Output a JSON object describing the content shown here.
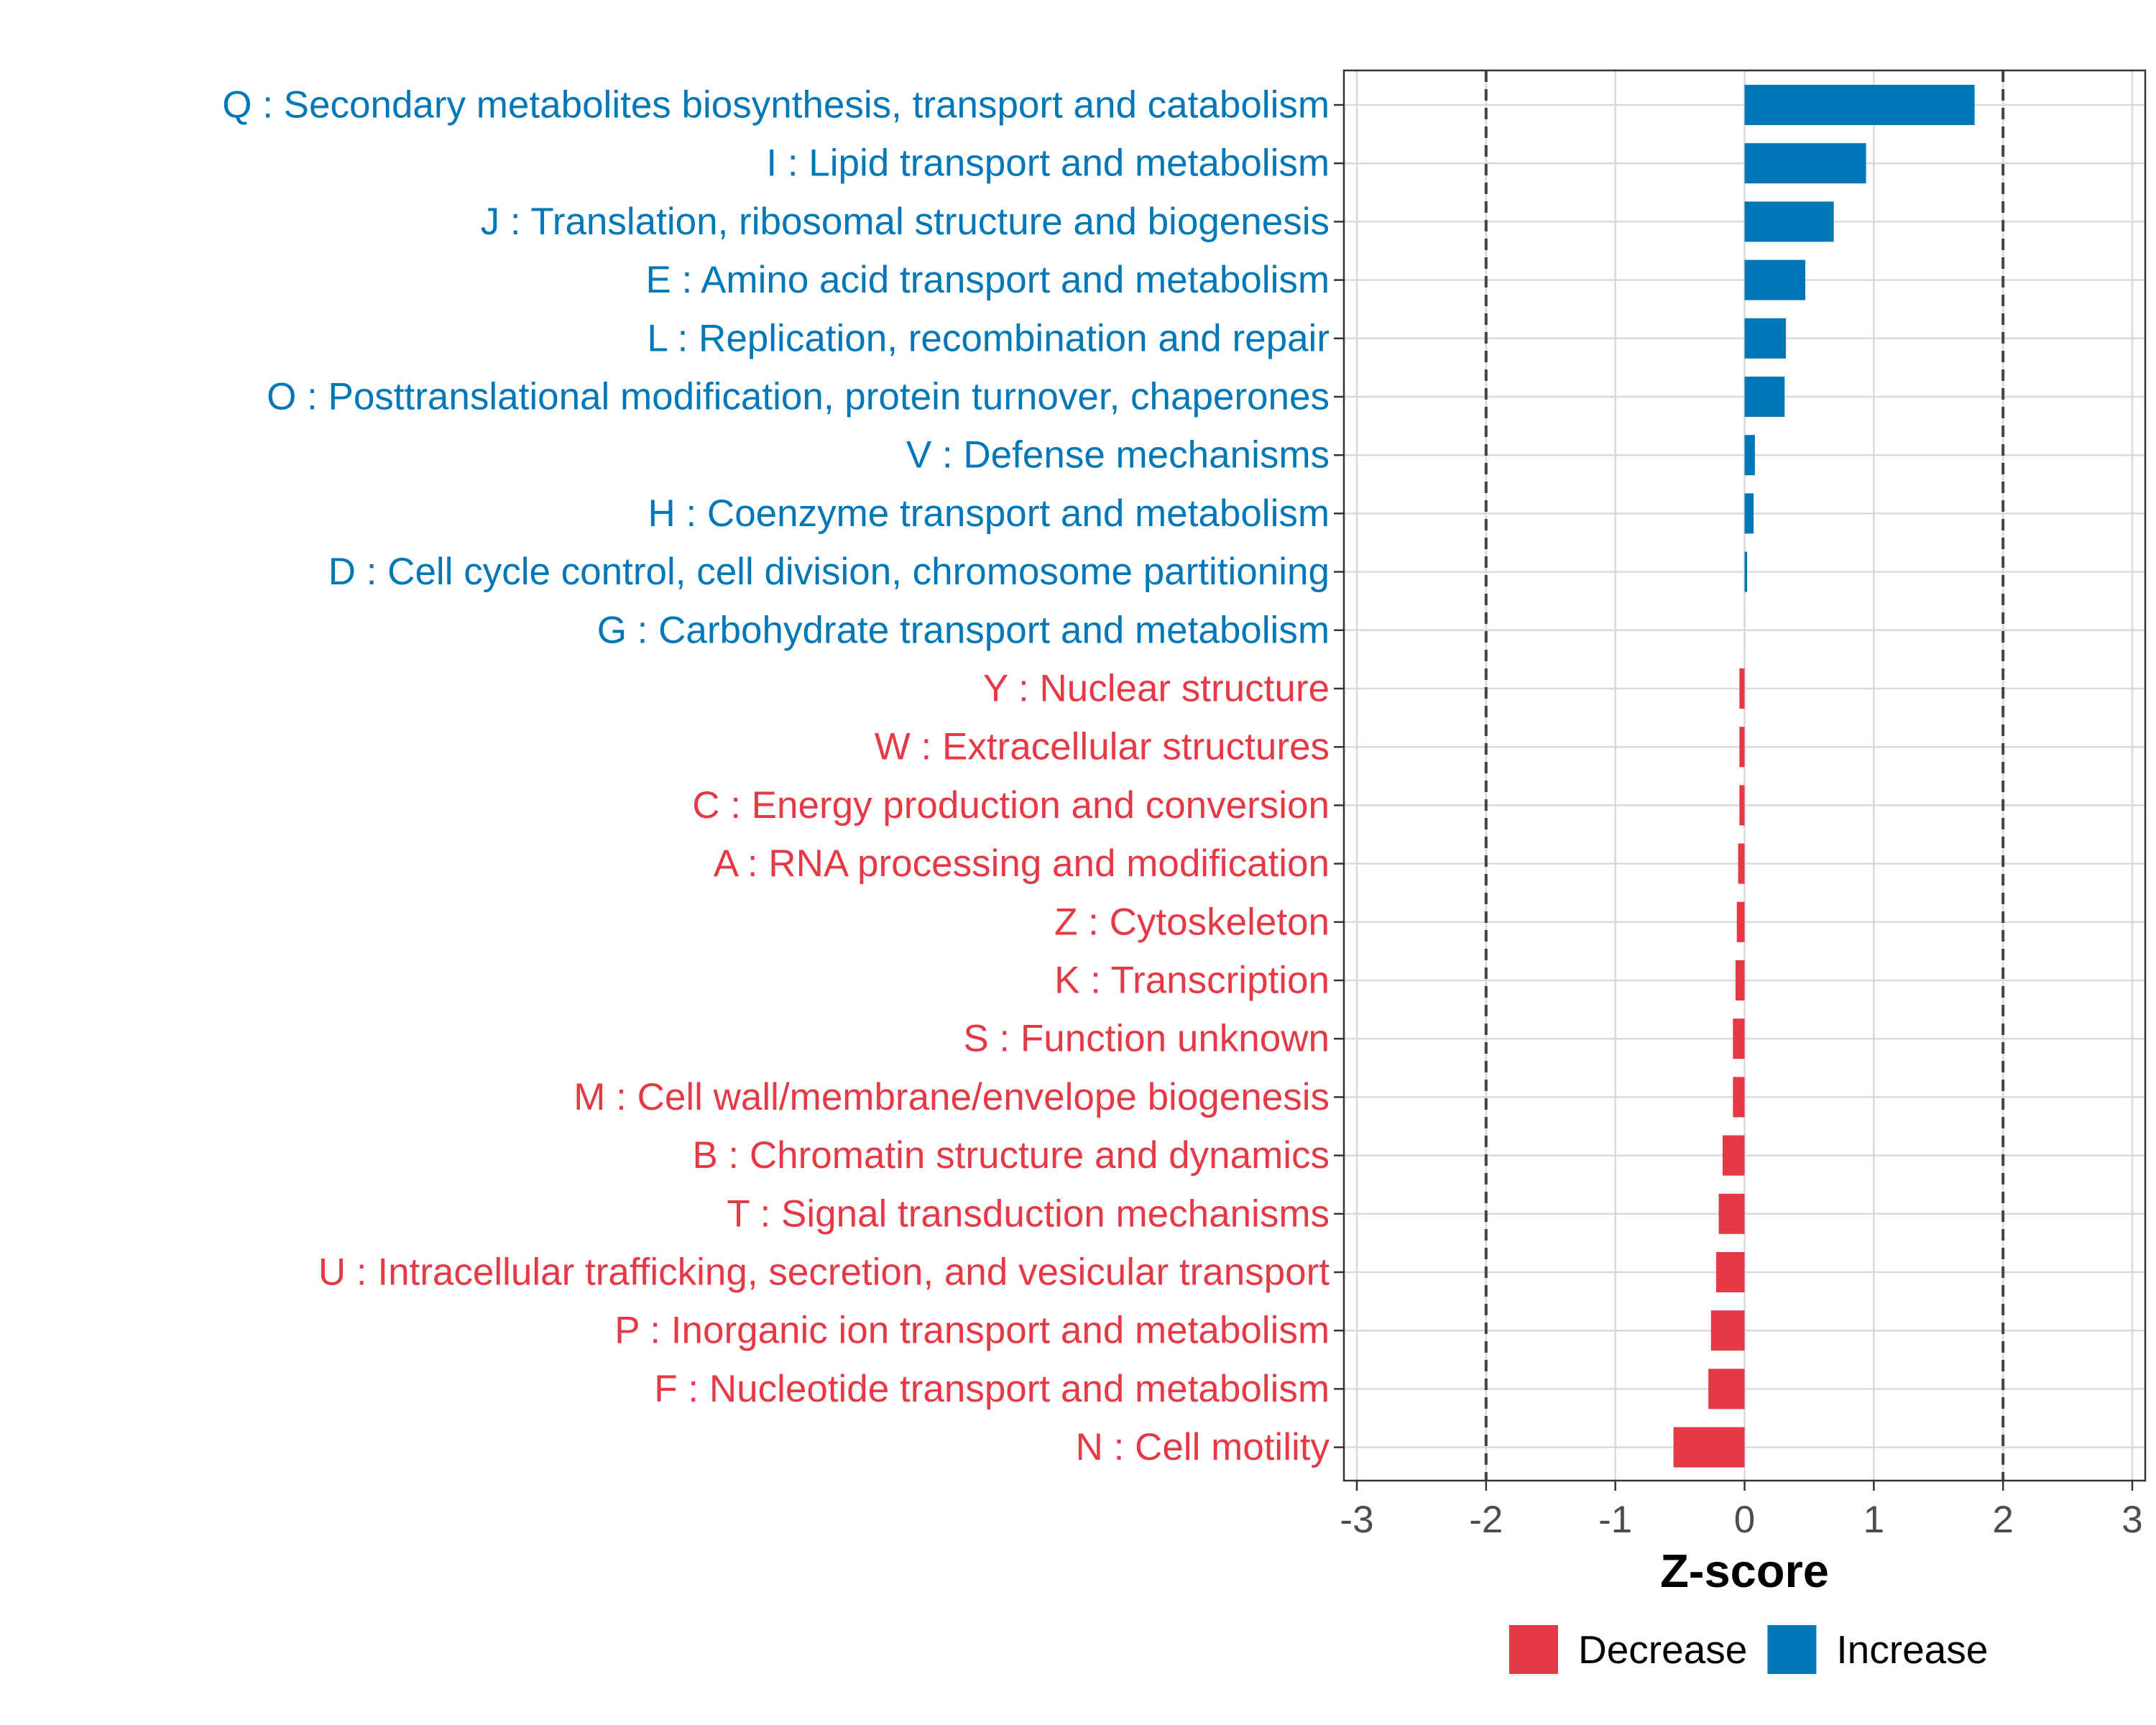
{
  "chart_data": {
    "type": "bar",
    "orientation": "horizontal",
    "xlabel": "Z-score",
    "xlim": [
      -3,
      3
    ],
    "xticks": [
      -3,
      -2,
      -1,
      0,
      1,
      2,
      3
    ],
    "xtick_labels": [
      "-3",
      "-2",
      "-1",
      "0",
      "1",
      "2",
      "3"
    ],
    "reference_lines": [
      -2,
      2
    ],
    "grid": true,
    "legend_position": "bottom",
    "colors": {
      "Decrease": "#e63946",
      "Increase": "#0077b6"
    },
    "legend": [
      {
        "label": "Decrease",
        "color": "#e63946"
      },
      {
        "label": "Increase",
        "color": "#0077b6"
      }
    ],
    "bars": [
      {
        "label": "Q : Secondary metabolites biosynthesis, transport and catabolism",
        "value": 1.78,
        "group": "Increase"
      },
      {
        "label": "I : Lipid transport and metabolism",
        "value": 0.94,
        "group": "Increase"
      },
      {
        "label": "J : Translation, ribosomal structure and biogenesis",
        "value": 0.69,
        "group": "Increase"
      },
      {
        "label": "E : Amino acid transport and metabolism",
        "value": 0.47,
        "group": "Increase"
      },
      {
        "label": "L : Replication, recombination and repair",
        "value": 0.32,
        "group": "Increase"
      },
      {
        "label": "O : Posttranslational modification, protein turnover, chaperones",
        "value": 0.31,
        "group": "Increase"
      },
      {
        "label": "V : Defense mechanisms",
        "value": 0.08,
        "group": "Increase"
      },
      {
        "label": "H : Coenzyme transport and metabolism",
        "value": 0.07,
        "group": "Increase"
      },
      {
        "label": "D : Cell cycle control, cell division, chromosome partitioning",
        "value": 0.02,
        "group": "Increase"
      },
      {
        "label": "G : Carbohydrate transport and metabolism",
        "value": 0.0,
        "group": "Increase"
      },
      {
        "label": "Y : Nuclear structure",
        "value": -0.04,
        "group": "Decrease"
      },
      {
        "label": "W : Extracellular structures",
        "value": -0.04,
        "group": "Decrease"
      },
      {
        "label": "C : Energy production and conversion",
        "value": -0.04,
        "group": "Decrease"
      },
      {
        "label": "A : RNA processing and modification",
        "value": -0.05,
        "group": "Decrease"
      },
      {
        "label": "Z : Cytoskeleton",
        "value": -0.06,
        "group": "Decrease"
      },
      {
        "label": "K : Transcription",
        "value": -0.07,
        "group": "Decrease"
      },
      {
        "label": "S : Function unknown",
        "value": -0.09,
        "group": "Decrease"
      },
      {
        "label": "M : Cell wall/membrane/envelope biogenesis",
        "value": -0.09,
        "group": "Decrease"
      },
      {
        "label": "B : Chromatin structure and dynamics",
        "value": -0.17,
        "group": "Decrease"
      },
      {
        "label": "T : Signal transduction mechanisms",
        "value": -0.2,
        "group": "Decrease"
      },
      {
        "label": "U : Intracellular trafficking, secretion, and vesicular transport",
        "value": -0.22,
        "group": "Decrease"
      },
      {
        "label": "P : Inorganic ion transport and metabolism",
        "value": -0.26,
        "group": "Decrease"
      },
      {
        "label": "F : Nucleotide transport and metabolism",
        "value": -0.28,
        "group": "Decrease"
      },
      {
        "label": "N : Cell motility",
        "value": -0.55,
        "group": "Decrease"
      }
    ]
  }
}
